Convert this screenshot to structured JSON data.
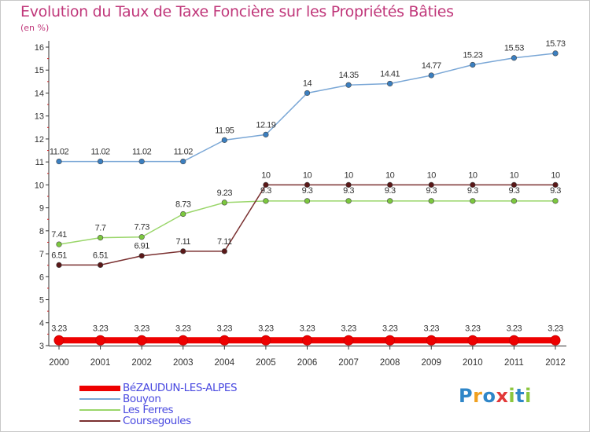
{
  "chart_data": {
    "type": "line",
    "title": "Evolution du Taux de Taxe Foncière sur les Propriétés Bâties",
    "subtitle": "(en %)",
    "x": [
      "2000",
      "2001",
      "2002",
      "2003",
      "2004",
      "2005",
      "2006",
      "2007",
      "2008",
      "2009",
      "2010",
      "2011",
      "2012"
    ],
    "y_ticks": [
      "3",
      "4",
      "5",
      "6",
      "7",
      "8",
      "9",
      "10",
      "11",
      "12",
      "13",
      "14",
      "15",
      "16"
    ],
    "ylim": [
      3,
      16
    ],
    "grid": false,
    "legend_position": "bottom-left",
    "series": [
      {
        "name": "BéZAUDUN-LES-ALPES",
        "color": "#ee0000",
        "marker_color": "#ee0000",
        "values": [
          3.23,
          3.23,
          3.23,
          3.23,
          3.23,
          3.23,
          3.23,
          3.23,
          3.23,
          3.23,
          3.23,
          3.23,
          3.23
        ],
        "labels": [
          "3.23",
          "3.23",
          "3.23",
          "3.23",
          "3.23",
          "3.23",
          "3.23",
          "3.23",
          "3.23",
          "3.23",
          "3.23",
          "3.23",
          "3.23"
        ]
      },
      {
        "name": "Bouyon",
        "color": "#7aa7d6",
        "marker_color": "#3b7fc0",
        "values": [
          11.02,
          11.02,
          11.02,
          11.02,
          11.95,
          12.19,
          14,
          14.35,
          14.41,
          14.77,
          15.23,
          15.53,
          15.73
        ],
        "labels": [
          "11.02",
          "11.02",
          "11.02",
          "11.02",
          "11.95",
          "12.19",
          "14",
          "14.35",
          "14.41",
          "14.77",
          "15.23",
          "15.53",
          "15.73"
        ]
      },
      {
        "name": "Les Ferres",
        "color": "#9ad66a",
        "marker_color": "#7cc83e",
        "values": [
          7.41,
          7.7,
          7.73,
          8.73,
          9.23,
          9.3,
          9.3,
          9.3,
          9.3,
          9.3,
          9.3,
          9.3,
          9.3
        ],
        "labels": [
          "7.41",
          "7.7",
          "7.73",
          "8.73",
          "9.23",
          "9.3",
          "9.3",
          "9.3",
          "9.3",
          "9.3",
          "9.3",
          "9.3",
          "9.3"
        ]
      },
      {
        "name": "Coursegoules",
        "color": "#7a3030",
        "marker_color": "#5a1818",
        "values": [
          6.51,
          6.51,
          6.91,
          7.11,
          7.11,
          10,
          10,
          10,
          10,
          10,
          10,
          10,
          10
        ],
        "labels": [
          "6.51",
          "6.51",
          "6.91",
          "7.11",
          "7.11",
          "10",
          "10",
          "10",
          "10",
          "10",
          "10",
          "10",
          "10"
        ]
      }
    ]
  },
  "logo": {
    "letters": [
      "P",
      "r",
      "o",
      "x",
      "i",
      "t",
      "i"
    ],
    "colors": [
      "#2f86c8",
      "#f0a020",
      "#2f86c8",
      "#e23838",
      "#8cc63e",
      "#2f86c8",
      "#8cc63e"
    ]
  }
}
